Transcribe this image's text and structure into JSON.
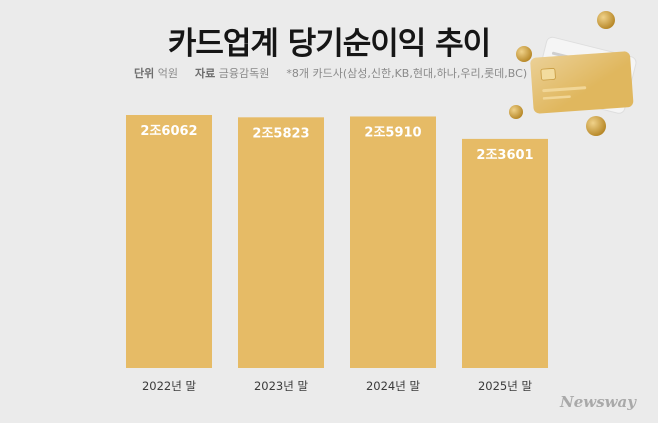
{
  "header": {
    "title": "카드업계 당기순이익 추이",
    "unit_label": "단위",
    "unit_value": "억원",
    "source_label": "자료",
    "source_value": "금융감독원",
    "note": "*8개 카드사(삼성,신한,KB,현대,하나,우리,롯데,BC)"
  },
  "chart_data": {
    "type": "bar",
    "title": "카드업계 당기순이익 추이",
    "categories": [
      "2022년 말",
      "2023년 말",
      "2024년 말",
      "2025년 말"
    ],
    "values": [
      26062,
      25823,
      25910,
      23601
    ],
    "value_labels": [
      "2조6062",
      "2조5823",
      "2조5910",
      "2조3601"
    ],
    "ylabel": "억원",
    "grid": false,
    "legend": "none",
    "bar_color": "#e6bb66"
  },
  "decor": {
    "card_gold": "#e0b75e",
    "card_silver": "#f4f4f4",
    "coin_color": "#c99a3c"
  },
  "watermark": "Newsway"
}
